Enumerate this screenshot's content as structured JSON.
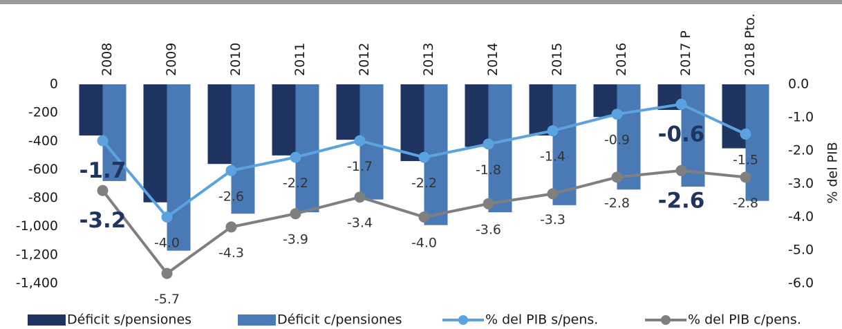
{
  "chart_data": {
    "type": "bar-line",
    "categories": [
      "2008",
      "2009",
      "2010",
      "2011",
      "2012",
      "2013",
      "2014",
      "2015",
      "2016",
      "2017 P",
      "2018 Pto."
    ],
    "series": [
      {
        "name": "Déficit s/pensiones",
        "type": "bar",
        "color": "#1f3461",
        "values": [
          -360,
          -830,
          -560,
          -500,
          -390,
          -540,
          -440,
          -360,
          -230,
          -180,
          -450
        ]
      },
      {
        "name": "Déficit c/pensiones",
        "type": "bar",
        "color": "#4a7ab5",
        "values": [
          -680,
          -1170,
          -910,
          -900,
          -810,
          -990,
          -900,
          -850,
          -740,
          -720,
          -820
        ]
      },
      {
        "name": "% del PIB s/pens.",
        "type": "line",
        "axis": "y2",
        "color": "#5ba3e0",
        "values": [
          -1.7,
          -4.0,
          -2.6,
          -2.2,
          -1.7,
          -2.2,
          -1.8,
          -1.4,
          -0.9,
          -0.6,
          -1.5
        ],
        "value_labels": [
          "-1.7",
          "-4.0",
          "-2.6",
          "-2.2",
          "-1.7",
          "-2.2",
          "-1.8",
          "-1.4",
          "-0.9",
          "-0.6",
          "-1.5"
        ],
        "highlight": [
          0,
          9
        ]
      },
      {
        "name": "% del PIB c/pens.",
        "type": "line",
        "axis": "y2",
        "color": "#7f7f7f",
        "values": [
          -3.2,
          -5.7,
          -4.3,
          -3.9,
          -3.4,
          -4.0,
          -3.6,
          -3.3,
          -2.8,
          -2.6,
          -2.8
        ],
        "value_labels": [
          "-3.2",
          "-5.7",
          "-4.3",
          "-3.9",
          "-3.4",
          "-4.0",
          "-3.6",
          "-3.3",
          "-2.8",
          "-2.6",
          "-2.8"
        ],
        "highlight": [
          0,
          9
        ]
      }
    ],
    "ylim": [
      -1400,
      0
    ],
    "yticks": [
      0,
      -200,
      -400,
      -600,
      -800,
      {
        "value": -1000,
        "label": "-1,000"
      },
      {
        "value": -1200,
        "label": "-1,200"
      },
      {
        "value": -1400,
        "label": "-1,400"
      }
    ],
    "y2lim": [
      -6,
      0
    ],
    "y2ticks": [
      {
        "value": 0,
        "label": "0.0"
      },
      {
        "value": -1,
        "label": "-1.0"
      },
      {
        "value": -2,
        "label": "-2.0"
      },
      {
        "value": -3,
        "label": "-3.0"
      },
      {
        "value": -4,
        "label": "-4.0"
      },
      {
        "value": -5,
        "label": "-5.0"
      },
      {
        "value": -6,
        "label": "-6.0"
      }
    ],
    "y2label": "% del PIB",
    "label_color": "#1f3461"
  }
}
